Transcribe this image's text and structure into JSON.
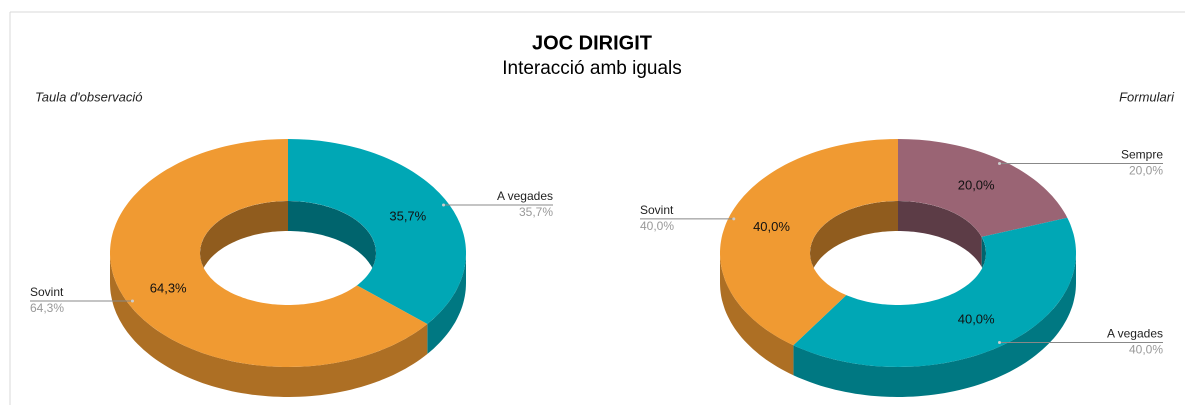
{
  "header": {
    "title": "JOC DIRIGIT",
    "subtitle": "Interacció amb iguals"
  },
  "chart_data": [
    {
      "type": "pie",
      "donut": true,
      "title": "Taula d'observació",
      "categories": [
        "A vegades",
        "Sovint"
      ],
      "values": [
        35.7,
        64.3
      ],
      "value_labels": [
        "35,7%",
        "64,3%"
      ],
      "colors": [
        "#00a7b5",
        "#f09a32"
      ]
    },
    {
      "type": "pie",
      "donut": true,
      "title": "Formulari",
      "categories": [
        "Sempre",
        "A vegades",
        "Sovint"
      ],
      "values": [
        20.0,
        40.0,
        40.0
      ],
      "value_labels": [
        "20,0%",
        "40,0%",
        "40,0%"
      ],
      "colors": [
        "#9a6474",
        "#00a7b5",
        "#f09a32"
      ]
    }
  ]
}
